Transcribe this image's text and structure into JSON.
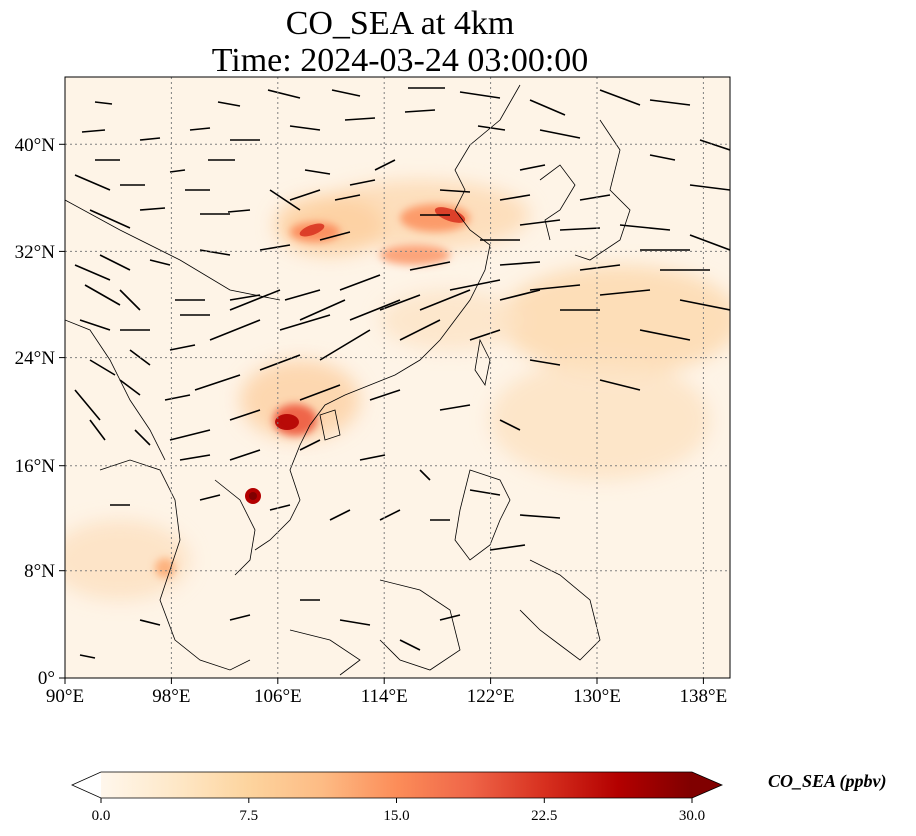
{
  "title": {
    "line1": "CO_SEA at 4km",
    "line2": "Time: 2024-03-24 03:00:00"
  },
  "map": {
    "lon_range": [
      90,
      140
    ],
    "lat_range": [
      0,
      44
    ],
    "lon_ticks": [
      {
        "value": 90,
        "label": "90°E"
      },
      {
        "value": 98,
        "label": "98°E"
      },
      {
        "value": 106,
        "label": "106°E"
      },
      {
        "value": 114,
        "label": "114°E"
      },
      {
        "value": 122,
        "label": "122°E"
      },
      {
        "value": 130,
        "label": "130°E"
      },
      {
        "value": 138,
        "label": "138°E"
      }
    ],
    "lat_ticks": [
      {
        "value": 0,
        "label": "0°"
      },
      {
        "value": 8,
        "label": "8°N"
      },
      {
        "value": 16,
        "label": "16°N"
      },
      {
        "value": 24,
        "label": "24°N"
      },
      {
        "value": 32,
        "label": "32°N"
      },
      {
        "value": 40,
        "label": "40°N"
      }
    ],
    "gridlines": "dotted"
  },
  "colorbar": {
    "label": "CO_SEA (ppbv)",
    "min": 0,
    "max": 30,
    "ticks": [
      "0.0",
      "7.5",
      "15.0",
      "22.5",
      "30.0"
    ],
    "extend": "both",
    "colormap": "OrRd",
    "colors": [
      "#fff7ec",
      "#fee8c8",
      "#fdd49e",
      "#fdbb84",
      "#fc8d59",
      "#ef6548",
      "#d7301f",
      "#b30000",
      "#7f0000"
    ]
  }
}
